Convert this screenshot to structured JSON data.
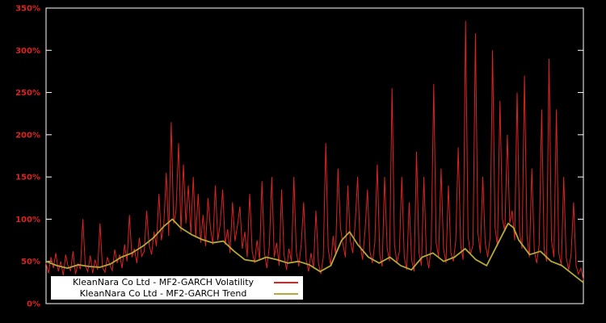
{
  "page": {
    "background": "#000000"
  },
  "chart": {
    "border_color": "#ffffff",
    "tick_label_color": "#dd2222",
    "legend": {
      "background": "#ffffff",
      "border_color": "#000000",
      "items": [
        {
          "label": "KleanNara Co Ltd - MF2-GARCH Volatility",
          "color": "#dd2222"
        },
        {
          "label": "KleanNara Co Ltd - MF2-GARCH Trend",
          "color": "#b5a738"
        }
      ]
    }
  },
  "chart_data": {
    "type": "line",
    "title": "",
    "xlabel": "",
    "ylabel": "",
    "ylim": [
      0,
      350
    ],
    "ytick_values": [
      0,
      50,
      100,
      150,
      200,
      250,
      300,
      350
    ],
    "ytick_labels": [
      "0%",
      "50%",
      "100%",
      "150%",
      "200%",
      "250%",
      "300%",
      "350%"
    ],
    "xtick_labels": [],
    "grid": false,
    "plot_background": "#000000",
    "legend_position": "bottom-left",
    "series": [
      {
        "name": "KleanNara Co Ltd - MF2-GARCH Volatility",
        "color": "#dd2222",
        "unit": "%",
        "x_mode": "uniform",
        "values": [
          48,
          36,
          55,
          42,
          60,
          38,
          50,
          33,
          58,
          44,
          39,
          62,
          35,
          47,
          41,
          100,
          45,
          38,
          57,
          36,
          52,
          40,
          95,
          43,
          37,
          55,
          46,
          39,
          64,
          48,
          58,
          42,
          70,
          50,
          105,
          55,
          65,
          48,
          78,
          56,
          62,
          110,
          70,
          58,
          85,
          68,
          130,
          75,
          95,
          155,
          80,
          215,
          95,
          110,
          190,
          85,
          165,
          95,
          140,
          82,
          150,
          78,
          130,
          72,
          105,
          68,
          125,
          90,
          70,
          140,
          75,
          95,
          135,
          70,
          88,
          60,
          120,
          74,
          92,
          115,
          65,
          85,
          55,
          130,
          62,
          48,
          75,
          52,
          145,
          60,
          42,
          68,
          150,
          55,
          72,
          45,
          135,
          58,
          40,
          65,
          50,
          150,
          62,
          44,
          70,
          120,
          52,
          38,
          60,
          42,
          110,
          48,
          35,
          55,
          190,
          65,
          45,
          80,
          58,
          160,
          90,
          70,
          55,
          140,
          75,
          60,
          95,
          150,
          70,
          52,
          85,
          135,
          62,
          48,
          72,
          165,
          58,
          44,
          150,
          66,
          50,
          255,
          70,
          48,
          62,
          150,
          55,
          40,
          120,
          52,
          38,
          180,
          60,
          45,
          150,
          58,
          42,
          68,
          260,
          72,
          55,
          160,
          65,
          48,
          140,
          60,
          50,
          75,
          185,
          68,
          52,
          335,
          80,
          58,
          70,
          320,
          85,
          60,
          150,
          72,
          55,
          78,
          300,
          90,
          68,
          240,
          100,
          85,
          200,
          95,
          110,
          75,
          250,
          85,
          65,
          270,
          80,
          55,
          160,
          62,
          48,
          70,
          230,
          65,
          50,
          290,
          75,
          55,
          230,
          60,
          45,
          150,
          55,
          40,
          58,
          120,
          45,
          35,
          42,
          28
        ]
      },
      {
        "name": "KleanNara Co Ltd - MF2-GARCH Trend",
        "color": "#b5a738",
        "unit": "%",
        "x_mode": "explicit",
        "x": [
          0,
          0.02,
          0.04,
          0.06,
          0.08,
          0.1,
          0.12,
          0.14,
          0.16,
          0.18,
          0.2,
          0.22,
          0.235,
          0.25,
          0.27,
          0.29,
          0.31,
          0.33,
          0.35,
          0.37,
          0.39,
          0.41,
          0.43,
          0.45,
          0.47,
          0.49,
          0.51,
          0.53,
          0.55,
          0.565,
          0.58,
          0.6,
          0.62,
          0.64,
          0.66,
          0.68,
          0.7,
          0.72,
          0.74,
          0.76,
          0.78,
          0.8,
          0.82,
          0.84,
          0.86,
          0.87,
          0.88,
          0.9,
          0.92,
          0.94,
          0.96,
          0.98,
          1.0
        ],
        "y": [
          50,
          45,
          42,
          46,
          44,
          43,
          47,
          55,
          60,
          68,
          78,
          92,
          100,
          90,
          82,
          76,
          72,
          74,
          62,
          52,
          50,
          55,
          52,
          48,
          50,
          46,
          38,
          45,
          75,
          85,
          70,
          55,
          48,
          55,
          45,
          40,
          55,
          60,
          50,
          55,
          65,
          52,
          45,
          70,
          95,
          90,
          75,
          58,
          62,
          50,
          45,
          35,
          25
        ]
      }
    ]
  }
}
